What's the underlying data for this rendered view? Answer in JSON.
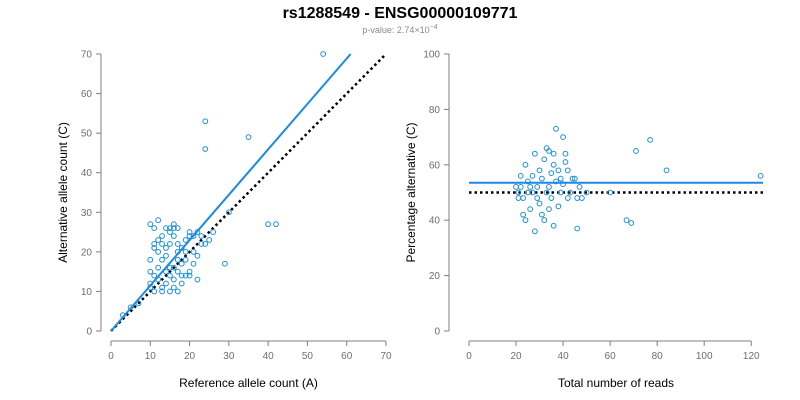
{
  "title": "rs1288549 - ENSG00000109771",
  "subtitle": {
    "prefix": "p-value: 2.74×10",
    "exponent": "−4"
  },
  "colors": {
    "points": "#1f8fd6",
    "fit_line": "#1e88e5",
    "reference_line": "#000000",
    "axis": "#7f7f7f",
    "tick_text": "#6e6e6e"
  },
  "chart_data": [
    {
      "type": "scatter",
      "title": "",
      "xlabel": "Reference allele count (A)",
      "ylabel": "Alternative allele count (C)",
      "xlim": [
        0,
        70
      ],
      "ylim": [
        0,
        70
      ],
      "xticks": [
        0,
        10,
        20,
        30,
        40,
        50,
        60,
        70
      ],
      "yticks": [
        0,
        10,
        20,
        30,
        40,
        50,
        60,
        70
      ],
      "grid": false,
      "points": [
        [
          3,
          4
        ],
        [
          5,
          6
        ],
        [
          7,
          7
        ],
        [
          10,
          11
        ],
        [
          10,
          12
        ],
        [
          11,
          10
        ],
        [
          12,
          13
        ],
        [
          13,
          11
        ],
        [
          14,
          12
        ],
        [
          14,
          15
        ],
        [
          15,
          14
        ],
        [
          15,
          16
        ],
        [
          16,
          13
        ],
        [
          16,
          16
        ],
        [
          17,
          15
        ],
        [
          17,
          18
        ],
        [
          18,
          17
        ],
        [
          19,
          18
        ],
        [
          20,
          15
        ],
        [
          21,
          17
        ],
        [
          10,
          15
        ],
        [
          10,
          18
        ],
        [
          11,
          21
        ],
        [
          11,
          22
        ],
        [
          12,
          20
        ],
        [
          12,
          23
        ],
        [
          13,
          22
        ],
        [
          13,
          24
        ],
        [
          14,
          19
        ],
        [
          14,
          21
        ],
        [
          15,
          22
        ],
        [
          15,
          25
        ],
        [
          16,
          24
        ],
        [
          16,
          26
        ],
        [
          17,
          20
        ],
        [
          17,
          22
        ],
        [
          18,
          21
        ],
        [
          19,
          23
        ],
        [
          20,
          24
        ],
        [
          20,
          25
        ],
        [
          10,
          27
        ],
        [
          11,
          26
        ],
        [
          12,
          28
        ],
        [
          14,
          26
        ],
        [
          15,
          26
        ],
        [
          16,
          27
        ],
        [
          17,
          26
        ],
        [
          13,
          10
        ],
        [
          15,
          10
        ],
        [
          16,
          11
        ],
        [
          17,
          10
        ],
        [
          18,
          12
        ],
        [
          19,
          14
        ],
        [
          20,
          14
        ],
        [
          21,
          20
        ],
        [
          22,
          19
        ],
        [
          22,
          13
        ],
        [
          23,
          22
        ],
        [
          24,
          22
        ],
        [
          25,
          23
        ],
        [
          22,
          25
        ],
        [
          26,
          25
        ],
        [
          24,
          46
        ],
        [
          24,
          53
        ],
        [
          35,
          49
        ],
        [
          40,
          27
        ],
        [
          42,
          27
        ],
        [
          29,
          17
        ],
        [
          30,
          30
        ],
        [
          54,
          70
        ],
        [
          12,
          16
        ],
        [
          11,
          14
        ],
        [
          13,
          18
        ],
        [
          18,
          14
        ],
        [
          19,
          20
        ],
        [
          21,
          24
        ],
        [
          23,
          24
        ]
      ],
      "fit_line": {
        "from": [
          0,
          0
        ],
        "to": [
          61,
          70
        ]
      },
      "reference_line": {
        "from": [
          0,
          0
        ],
        "to": [
          70,
          70
        ]
      }
    },
    {
      "type": "scatter",
      "title": "",
      "xlabel": "Total number of reads",
      "ylabel": "Percentage alternative (C)",
      "xlim": [
        0,
        125
      ],
      "ylim": [
        0,
        100
      ],
      "xticks": [
        0,
        20,
        40,
        60,
        80,
        100,
        120
      ],
      "yticks": [
        0,
        20,
        40,
        60,
        80,
        100
      ],
      "grid": false,
      "points": [
        [
          20,
          52
        ],
        [
          21,
          48
        ],
        [
          21,
          50
        ],
        [
          22,
          56
        ],
        [
          22,
          52
        ],
        [
          23,
          42
        ],
        [
          23,
          48
        ],
        [
          24,
          40
        ],
        [
          24,
          60
        ],
        [
          25,
          50
        ],
        [
          25,
          54
        ],
        [
          26,
          52
        ],
        [
          26,
          44
        ],
        [
          27,
          50
        ],
        [
          27,
          56
        ],
        [
          28,
          36
        ],
        [
          28,
          64
        ],
        [
          29,
          48
        ],
        [
          29,
          52
        ],
        [
          30,
          58
        ],
        [
          30,
          46
        ],
        [
          31,
          42
        ],
        [
          31,
          55
        ],
        [
          32,
          40
        ],
        [
          32,
          62
        ],
        [
          33,
          66
        ],
        [
          33,
          50
        ],
        [
          34,
          44
        ],
        [
          34,
          52
        ],
        [
          34,
          65
        ],
        [
          35,
          57
        ],
        [
          35,
          48
        ],
        [
          36,
          38
        ],
        [
          36,
          60
        ],
        [
          36,
          64
        ],
        [
          37,
          73
        ],
        [
          37,
          54
        ],
        [
          38,
          45
        ],
        [
          38,
          58
        ],
        [
          39,
          50
        ],
        [
          39,
          55
        ],
        [
          40,
          53
        ],
        [
          40,
          70
        ],
        [
          41,
          64
        ],
        [
          41,
          61
        ],
        [
          42,
          58
        ],
        [
          42,
          48
        ],
        [
          43,
          50
        ],
        [
          44,
          55
        ],
        [
          45,
          55
        ],
        [
          46,
          37
        ],
        [
          46,
          48
        ],
        [
          47,
          52
        ],
        [
          48,
          48
        ],
        [
          50,
          50
        ],
        [
          60,
          50
        ],
        [
          67,
          40
        ],
        [
          69,
          39
        ],
        [
          71,
          65
        ],
        [
          77,
          69
        ],
        [
          84,
          58
        ],
        [
          124,
          56
        ]
      ],
      "fit_line": {
        "from": [
          0,
          53.5
        ],
        "to": [
          125,
          53.5
        ]
      },
      "reference_line": {
        "from": [
          0,
          50
        ],
        "to": [
          125,
          50
        ]
      }
    }
  ]
}
